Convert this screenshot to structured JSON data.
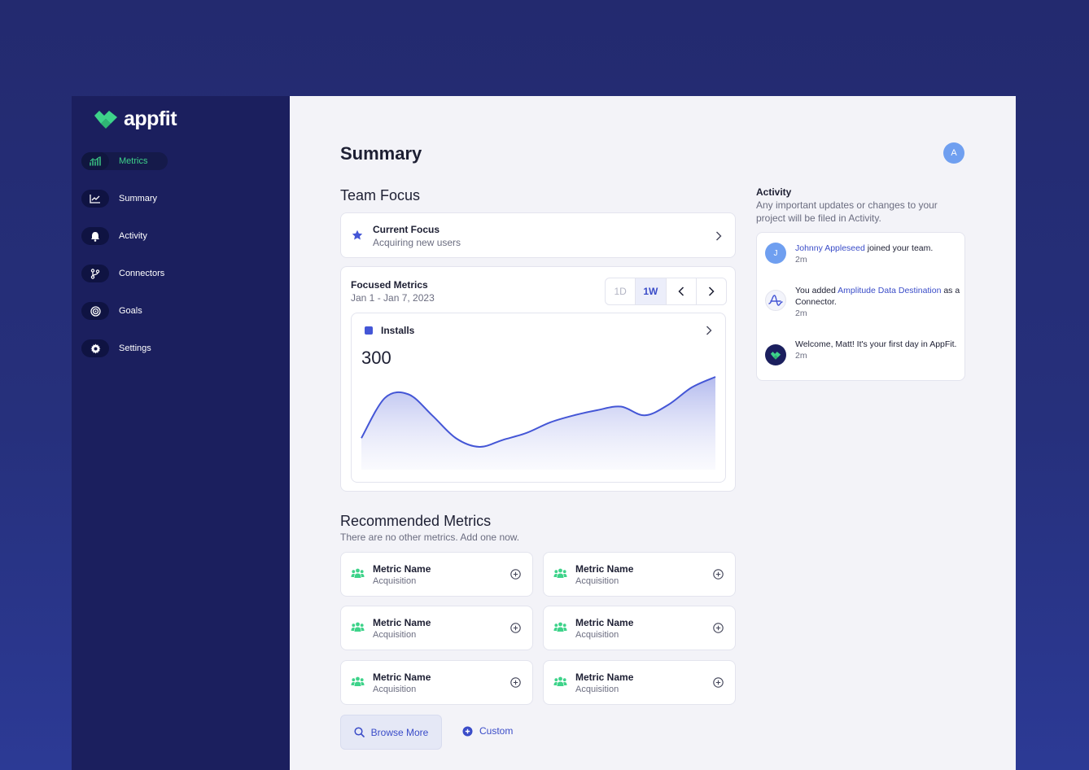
{
  "brand": {
    "name": "appfit",
    "color": "#3ed38a"
  },
  "sidebar": {
    "items": [
      {
        "label": "Metrics",
        "icon": "metrics-icon",
        "active": true
      },
      {
        "label": "Summary",
        "icon": "chart-line-icon",
        "active": false
      },
      {
        "label": "Activity",
        "icon": "bell-icon",
        "active": false
      },
      {
        "label": "Connectors",
        "icon": "branch-icon",
        "active": false
      },
      {
        "label": "Goals",
        "icon": "target-icon",
        "active": false
      },
      {
        "label": "Settings",
        "icon": "gear-icon",
        "active": false
      }
    ]
  },
  "header": {
    "title": "Summary",
    "avatar_initial": "A"
  },
  "team_focus": {
    "title": "Team Focus",
    "current_focus_label": "Current Focus",
    "current_focus_value": "Acquiring new users"
  },
  "focused_metrics": {
    "title": "Focused Metrics",
    "date_range": "Jan 1 - Jan 7, 2023",
    "ranges": [
      "1D",
      "1W"
    ],
    "selected_range": "1W",
    "metric": {
      "label": "Installs",
      "value": "300",
      "color": "#4456d6"
    },
    "chart_data": {
      "type": "area",
      "series": [
        {
          "values": [
            5,
            28,
            30,
            18,
            5,
            0,
            4,
            8,
            14,
            18,
            21,
            23,
            18,
            24,
            34,
            40
          ]
        }
      ]
    }
  },
  "recommended": {
    "title": "Recommended Metrics",
    "subtitle": "There are no other metrics. Add one now.",
    "items": [
      {
        "name": "Metric Name",
        "category": "Acquisition"
      },
      {
        "name": "Metric Name",
        "category": "Acquisition"
      },
      {
        "name": "Metric Name",
        "category": "Acquisition"
      },
      {
        "name": "Metric Name",
        "category": "Acquisition"
      },
      {
        "name": "Metric Name",
        "category": "Acquisition"
      },
      {
        "name": "Metric Name",
        "category": "Acquisition"
      }
    ],
    "browse_label": "Browse More",
    "custom_label": "Custom"
  },
  "activity": {
    "title": "Activity",
    "subtitle": "Any important updates or changes to your project will be filed in Activity.",
    "items": [
      {
        "pre": "",
        "link": "Johnny Appleseed",
        "post": " joined your team.",
        "time": "2m",
        "avatar": "J"
      },
      {
        "pre": "You added ",
        "link": "Amplitude Data Destination",
        "post": " as a Connector.",
        "time": "2m"
      },
      {
        "pre": "Welcome, Matt! It's your first day in AppFit.",
        "link": "",
        "post": "",
        "time": "2m"
      }
    ]
  }
}
